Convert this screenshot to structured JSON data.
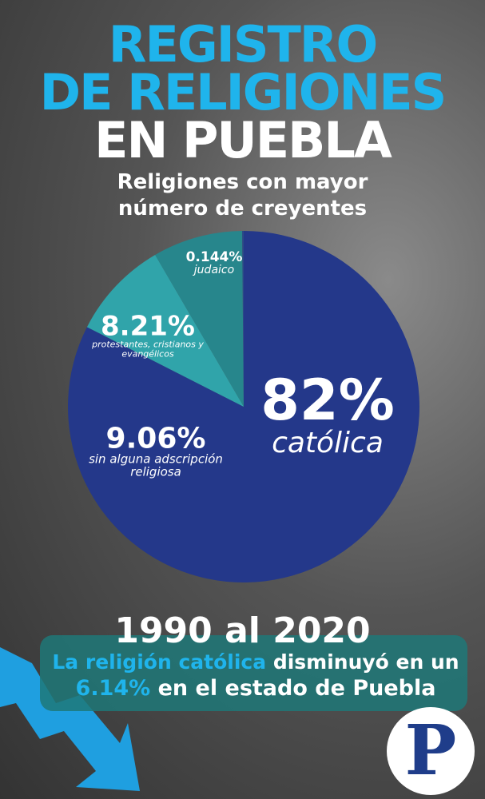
{
  "chart_data": {
    "type": "pie",
    "title": [
      "REGISTRO",
      "DE RELIGIONES",
      "EN PUEBLA"
    ],
    "subtitle": [
      "Religiones con mayor",
      "número de creyentes"
    ],
    "categories": [
      "católica",
      "sin alguna adscripción religiosa",
      "protestantes, cristianos y evangélicos",
      "judaico"
    ],
    "values": [
      82,
      9.06,
      8.21,
      0.144
    ],
    "value_labels": [
      "82%",
      "9.06%",
      "8.21%",
      "0.144%"
    ],
    "colors": [
      "#24388a",
      "#30a4aa",
      "#27868c",
      "#2b4c86"
    ]
  },
  "annotation": {
    "period": "1990 al 2020",
    "highlight": "La religión católica",
    "text_1": "disminuyó en un",
    "change": "6.14%",
    "text_2": "en el estado de Puebla"
  },
  "logo": "P"
}
